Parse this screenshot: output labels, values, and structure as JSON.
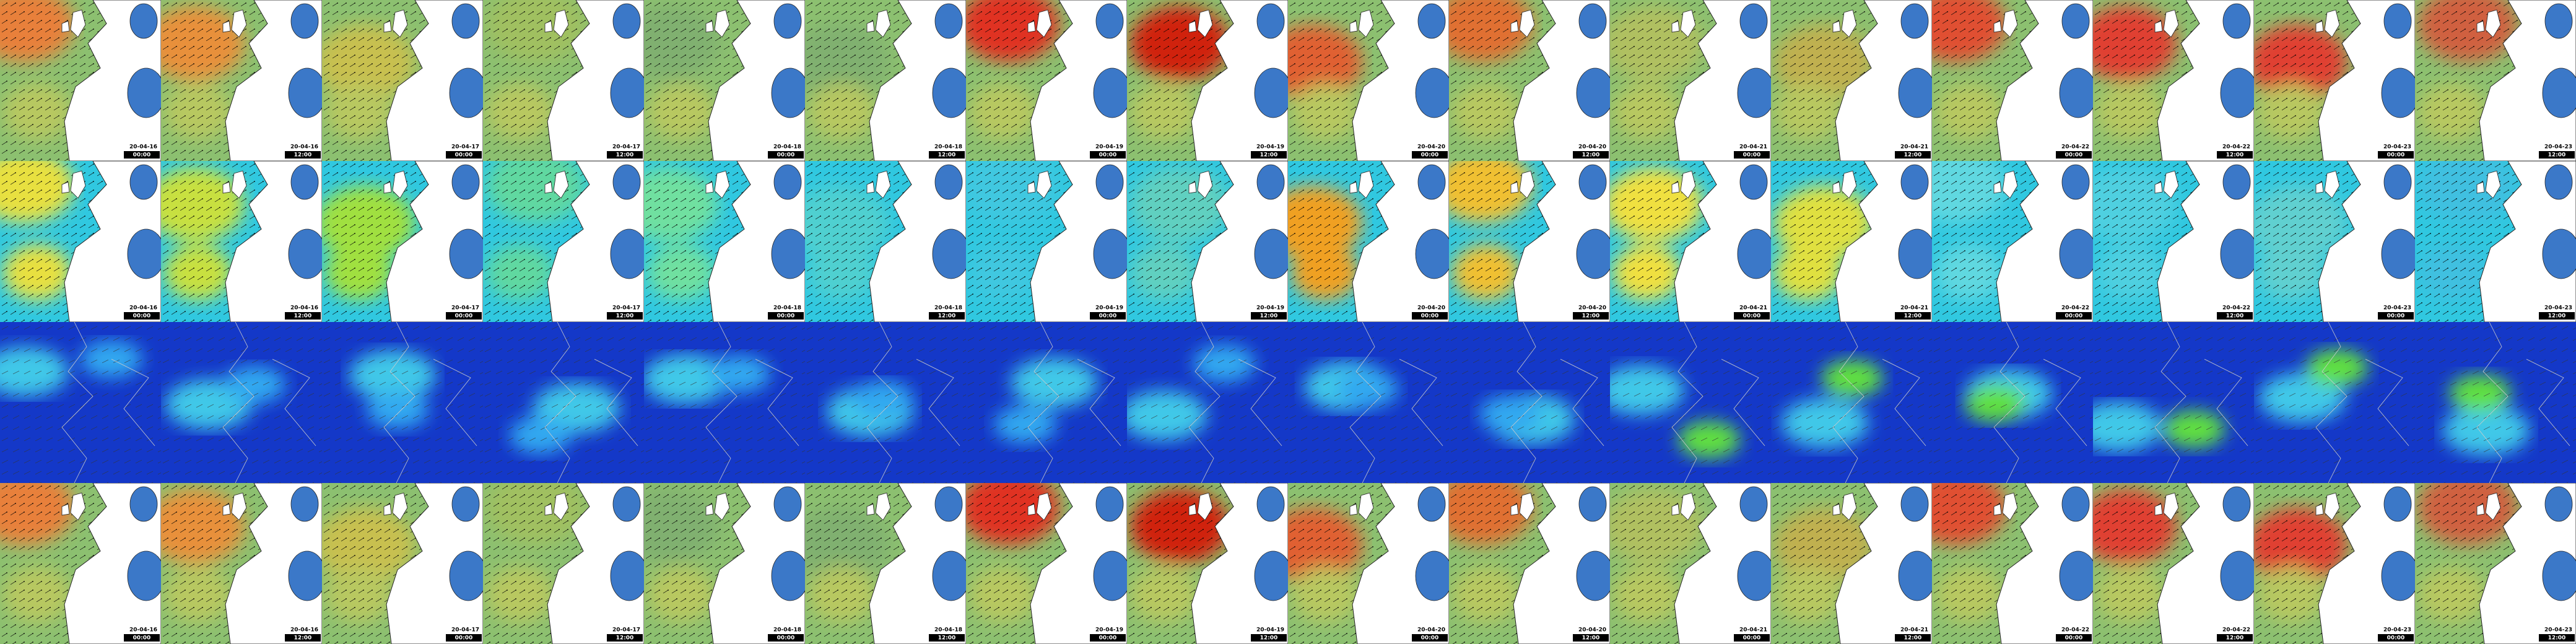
{
  "columns": [
    {
      "date": "20-04-16",
      "time": "00:00"
    },
    {
      "date": "20-04-16",
      "time": "12:00"
    },
    {
      "date": "20-04-17",
      "time": "00:00"
    },
    {
      "date": "20-04-17",
      "time": "12:00"
    },
    {
      "date": "20-04-18",
      "time": "00:00"
    },
    {
      "date": "20-04-18",
      "time": "12:00"
    },
    {
      "date": "20-04-19",
      "time": "00:00"
    },
    {
      "date": "20-04-19",
      "time": "12:00"
    },
    {
      "date": "20-04-20",
      "time": "00:00"
    },
    {
      "date": "20-04-20",
      "time": "12:00"
    },
    {
      "date": "20-04-21",
      "time": "00:00"
    },
    {
      "date": "20-04-21",
      "time": "12:00"
    },
    {
      "date": "20-04-22",
      "time": "00:00"
    },
    {
      "date": "20-04-22",
      "time": "12:00"
    },
    {
      "date": "20-04-23",
      "time": "00:00"
    },
    {
      "date": "20-04-23",
      "time": "12:00"
    }
  ]
}
